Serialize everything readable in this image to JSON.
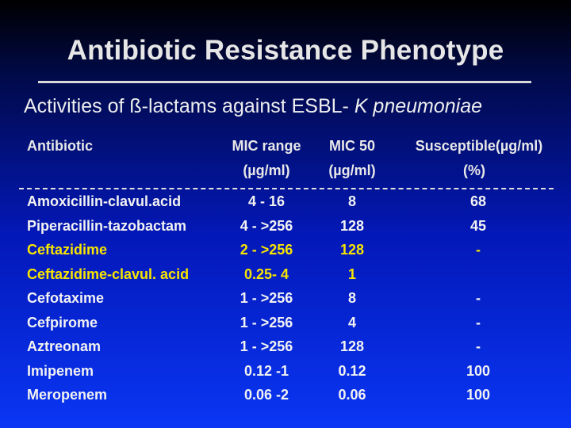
{
  "slide": {
    "title": "Antibiotic Resistance Phenotype",
    "subtitle_main": "Activities of ß-lactams against ESBL- ",
    "subtitle_italic": "K pneumoniae"
  },
  "table": {
    "headers": {
      "antibiotic": "Antibiotic",
      "mic_range_1": "MIC range",
      "mic_range_2": "(µg/ml)",
      "mic50_1": "MIC 50",
      "mic50_2": "(µg/ml)",
      "susceptible_1": "Susceptible(µg/ml)",
      "susceptible_2": "(%)"
    },
    "rows": [
      {
        "antibiotic": "Amoxicillin-clavul.acid",
        "mic_range": "4 - 16",
        "mic50": "8",
        "susceptible": "68",
        "color": "#f2f2f2"
      },
      {
        "antibiotic": "Piperacillin-tazobactam",
        "mic_range": "4 - >256",
        "mic50": "128",
        "susceptible": "45",
        "color": "#f2f2f2"
      },
      {
        "antibiotic": "Ceftazidime",
        "mic_range": "2 - >256",
        "mic50": "128",
        "susceptible": "-",
        "color": "#f7e400"
      },
      {
        "antibiotic": "Ceftazidime-clavul. acid",
        "mic_range": "0.25- 4",
        "mic50": "1",
        "susceptible": "",
        "color": "#f7e400"
      },
      {
        "antibiotic": "Cefotaxime",
        "mic_range": "1 - >256",
        "mic50": "8",
        "susceptible": "-",
        "color": "#f2f2f2"
      },
      {
        "antibiotic": "Cefpirome",
        "mic_range": "1 - >256",
        "mic50": "4",
        "susceptible": "-",
        "color": "#f2f2f2"
      },
      {
        "antibiotic": "Aztreonam",
        "mic_range": "1 - >256",
        "mic50": "128",
        "susceptible": "-",
        "color": "#f2f2f2"
      },
      {
        "antibiotic": "Imipenem",
        "mic_range": "0.12 -1",
        "mic50": "0.12",
        "susceptible": "100",
        "color": "#f2f2f2"
      },
      {
        "antibiotic": "Meropenem",
        "mic_range": "0.06 -2",
        "mic50": "0.06",
        "susceptible": "100",
        "color": "#f2f2f2"
      }
    ]
  }
}
